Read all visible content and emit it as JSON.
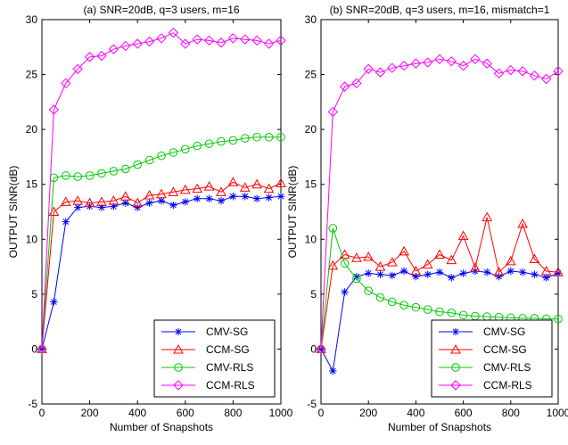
{
  "colors": {
    "CMV-SG": "#0000ff",
    "CCM-SG": "#ff0000",
    "CMV-RLS": "#00cc00",
    "CCM-RLS": "#ff00ff"
  },
  "markers": {
    "CMV-SG": "asterisk",
    "CCM-SG": "triangle",
    "CMV-RLS": "circle",
    "CCM-RLS": "diamond"
  },
  "chart_data": [
    {
      "type": "line",
      "title": "(a) SNR=20dB, q=3 users, m=16",
      "xlabel": "Number of Snapshots",
      "ylabel": "OUTPUT SINR(dB)",
      "xlim": [
        0,
        1000
      ],
      "ylim": [
        -5,
        30
      ],
      "xticks": [
        "0",
        "200",
        "400",
        "600",
        "800",
        "1000"
      ],
      "yticks": [
        "-5",
        "0",
        "5",
        "10",
        "15",
        "20",
        "25",
        "30"
      ],
      "grid": false,
      "legend_position": "bottom-right",
      "x": [
        0,
        50,
        100,
        150,
        200,
        250,
        300,
        350,
        400,
        450,
        500,
        550,
        600,
        650,
        700,
        750,
        800,
        850,
        900,
        950,
        1000
      ],
      "series": [
        {
          "name": "CMV-SG",
          "values": [
            0,
            4.3,
            11.6,
            12.9,
            13.0,
            12.9,
            13.0,
            13.3,
            12.9,
            13.3,
            13.5,
            13.1,
            13.4,
            13.7,
            13.7,
            13.5,
            13.9,
            13.9,
            13.7,
            13.8,
            13.9
          ]
        },
        {
          "name": "CCM-SG",
          "values": [
            0,
            12.5,
            13.4,
            13.5,
            13.3,
            13.4,
            13.5,
            13.9,
            13.3,
            14.0,
            14.1,
            14.3,
            14.5,
            14.6,
            14.8,
            14.3,
            15.2,
            14.7,
            15.0,
            14.6,
            15.1
          ]
        },
        {
          "name": "CMV-RLS",
          "values": [
            0,
            15.6,
            15.8,
            15.7,
            15.8,
            16.0,
            16.2,
            16.4,
            16.8,
            17.2,
            17.6,
            17.9,
            18.2,
            18.5,
            18.7,
            18.9,
            19.0,
            19.2,
            19.3,
            19.3,
            19.3
          ]
        },
        {
          "name": "CCM-RLS",
          "values": [
            0,
            21.8,
            24.2,
            25.5,
            26.6,
            26.7,
            27.3,
            27.6,
            27.8,
            28.0,
            28.3,
            28.8,
            27.8,
            28.2,
            28.1,
            27.9,
            28.3,
            28.2,
            28.1,
            27.8,
            28.1
          ]
        }
      ]
    },
    {
      "type": "line",
      "title": "(b) SNR=20dB, q=3 users, m=16, mismatch=1",
      "xlabel": "Number of Snapshots",
      "ylabel": "OUTPUT SINR(dB)",
      "xlim": [
        0,
        1000
      ],
      "ylim": [
        -5,
        30
      ],
      "xticks": [
        "0",
        "200",
        "400",
        "600",
        "800",
        "1000"
      ],
      "yticks": [
        "-5",
        "0",
        "5",
        "10",
        "15",
        "20",
        "25",
        "30"
      ],
      "grid": false,
      "legend_position": "bottom-right",
      "x": [
        0,
        50,
        100,
        150,
        200,
        250,
        300,
        350,
        400,
        450,
        500,
        550,
        600,
        650,
        700,
        750,
        800,
        850,
        900,
        950,
        1000
      ],
      "series": [
        {
          "name": "CMV-SG",
          "values": [
            0,
            -2.0,
            5.2,
            6.6,
            6.9,
            6.8,
            6.7,
            7.1,
            6.6,
            6.8,
            7.0,
            6.5,
            6.9,
            7.1,
            7.0,
            6.6,
            7.1,
            7.0,
            6.8,
            6.5,
            6.9
          ]
        },
        {
          "name": "CCM-SG",
          "values": [
            0,
            7.6,
            8.6,
            8.3,
            8.4,
            7.5,
            7.9,
            8.9,
            7.1,
            7.7,
            8.6,
            8.1,
            10.3,
            7.4,
            12.0,
            7.0,
            8.0,
            11.4,
            8.2,
            7.1,
            7.0
          ]
        },
        {
          "name": "CMV-RLS",
          "values": [
            0,
            11.0,
            7.8,
            6.4,
            5.3,
            4.7,
            4.3,
            4.0,
            3.8,
            3.6,
            3.4,
            3.3,
            3.1,
            3.0,
            2.95,
            2.9,
            2.85,
            2.8,
            2.8,
            2.75,
            2.75
          ]
        },
        {
          "name": "CCM-RLS",
          "values": [
            0,
            21.6,
            23.9,
            24.2,
            25.5,
            25.2,
            25.6,
            25.8,
            26.0,
            26.1,
            26.4,
            26.2,
            25.8,
            26.4,
            26.0,
            25.1,
            25.4,
            25.3,
            24.9,
            24.6,
            25.3
          ]
        }
      ]
    }
  ]
}
